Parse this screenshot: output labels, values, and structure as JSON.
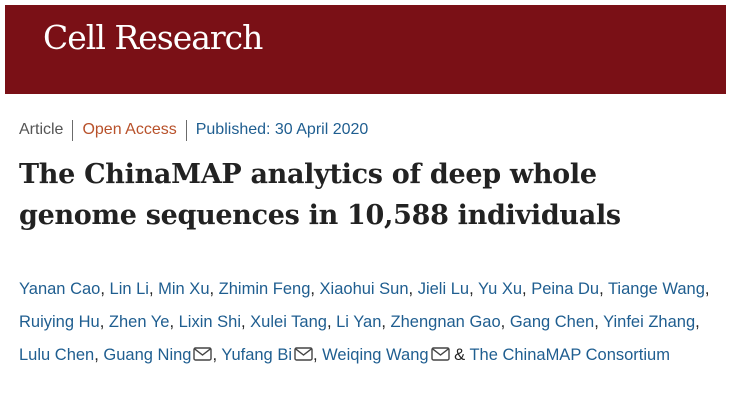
{
  "journal": {
    "name": "Cell Research",
    "brand_color": "#7a1016"
  },
  "article_meta": {
    "type": "Article",
    "access": "Open Access",
    "published": "Published: 30 April 2020",
    "colors": {
      "type": "#555555",
      "access": "#b8512a",
      "published": "#1f5e90"
    }
  },
  "article": {
    "title_line1": "The ChinaMAP analytics of deep whole",
    "title_line2": "genome sequences in 10,588 individuals"
  },
  "authors": {
    "link_color": "#1f5e90",
    "list": [
      {
        "name": "Yanan Cao",
        "email_icon": false
      },
      {
        "name": "Lin Li",
        "email_icon": false
      },
      {
        "name": "Min Xu",
        "email_icon": false
      },
      {
        "name": "Zhimin Feng",
        "email_icon": false
      },
      {
        "name": "Xiaohui Sun",
        "email_icon": false
      },
      {
        "name": "Jieli Lu",
        "email_icon": false
      },
      {
        "name": "Yu Xu",
        "email_icon": false
      },
      {
        "name": "Peina Du",
        "email_icon": false
      },
      {
        "name": "Tiange Wang",
        "email_icon": false
      },
      {
        "name": "Ruiying Hu",
        "email_icon": false
      },
      {
        "name": "Zhen Ye",
        "email_icon": false
      },
      {
        "name": "Lixin Shi",
        "email_icon": false
      },
      {
        "name": "Xulei Tang",
        "email_icon": false
      },
      {
        "name": "Li Yan",
        "email_icon": false
      },
      {
        "name": "Zhengnan Gao",
        "email_icon": false
      },
      {
        "name": "Gang Chen",
        "email_icon": false
      },
      {
        "name": "Yinfei Zhang",
        "email_icon": false
      },
      {
        "name": "Lulu Chen",
        "email_icon": false
      },
      {
        "name": "Guang Ning",
        "email_icon": true
      },
      {
        "name": "Yufang Bi",
        "email_icon": true
      },
      {
        "name": "Weiqing Wang",
        "email_icon": true
      }
    ],
    "separator": ", ",
    "conjunction": " & ",
    "consortium": "The ChinaMAP Consortium",
    "email_icon_name": "envelope-icon"
  }
}
